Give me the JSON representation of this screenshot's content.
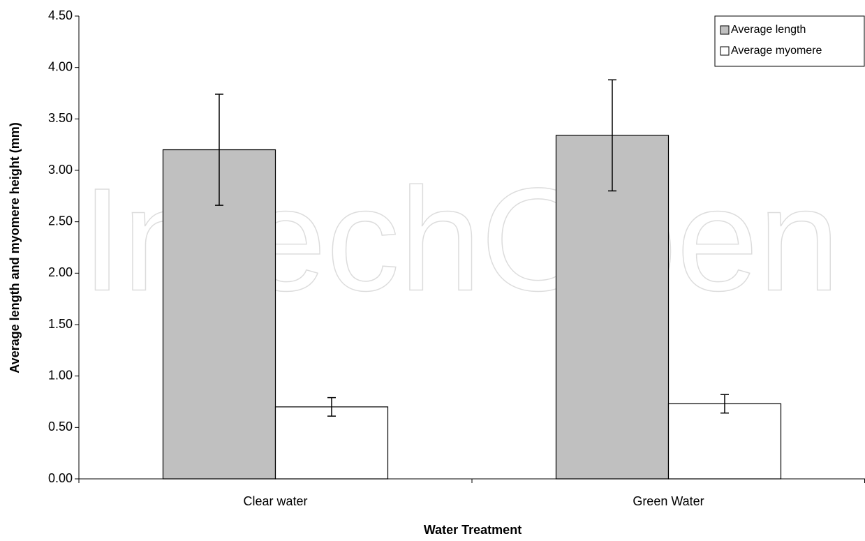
{
  "chart_data": {
    "type": "bar",
    "watermark": "IntechOpen",
    "x_label": "Water Treatment",
    "y_label": "Average length and myomere height (mm)",
    "categories": [
      "Clear water",
      "Green Water"
    ],
    "series": [
      {
        "name": "Average length",
        "color": "#c0c0c0",
        "values": [
          3.2,
          3.34
        ],
        "errors": [
          0.54,
          0.54
        ]
      },
      {
        "name": "Average myomere",
        "color": "#ffffff",
        "values": [
          0.7,
          0.73
        ],
        "errors": [
          0.09,
          0.09
        ]
      }
    ],
    "ylim": [
      0,
      4.5
    ],
    "yticks": [
      {
        "value": 0,
        "label": "0.00"
      },
      {
        "value": 0.5,
        "label": "0.50"
      },
      {
        "value": 1,
        "label": "1.00"
      },
      {
        "value": 1.5,
        "label": "1.50"
      },
      {
        "value": 2,
        "label": "2.00"
      },
      {
        "value": 2.5,
        "label": "2.50"
      },
      {
        "value": 3,
        "label": "3.00"
      },
      {
        "value": 3.5,
        "label": "3.50"
      },
      {
        "value": 4,
        "label": "4.00"
      },
      {
        "value": 4.5,
        "label": "4.50"
      }
    ],
    "legend": "top-right",
    "grid": false
  }
}
